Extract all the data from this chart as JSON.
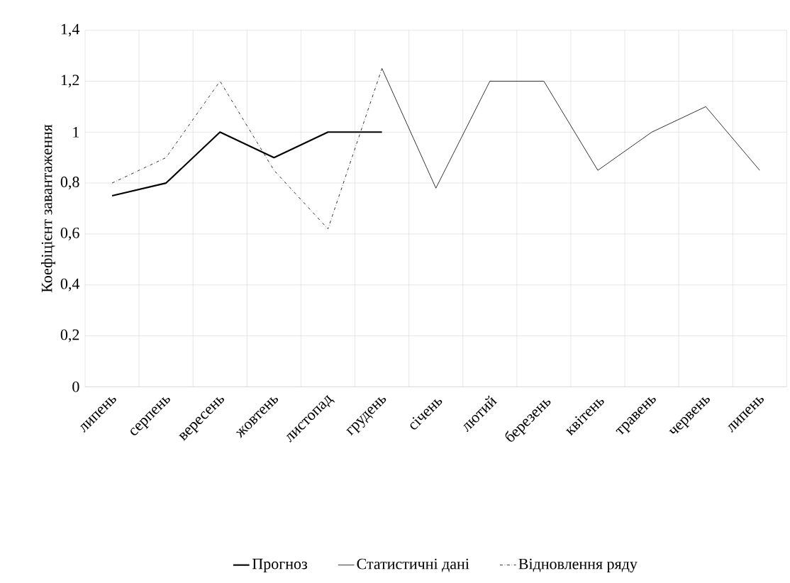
{
  "chart_data": {
    "type": "line",
    "ylabel": "Коефіцієнт завантаження",
    "categories": [
      "липень",
      "серпень",
      "вересень",
      "жовтень",
      "листопад",
      "грудень",
      "січень",
      "лютий",
      "березень",
      "квітень",
      "травень",
      "червень",
      "липень"
    ],
    "series": [
      {
        "name": "Прогноз",
        "color": "#000000",
        "line_style": "solid",
        "values": [
          0.75,
          0.8,
          1.0,
          0.9,
          1.0,
          1.0,
          null,
          null,
          null,
          null,
          null,
          null,
          null
        ]
      },
      {
        "name": "Статистичні дані",
        "color": "#000000",
        "line_style": "solid",
        "values": [
          null,
          null,
          null,
          null,
          null,
          1.25,
          0.78,
          1.2,
          1.2,
          0.85,
          1.0,
          1.1,
          0.85
        ]
      },
      {
        "name": "Відновлення ряду",
        "color": "#000000",
        "line_style": "dashed",
        "values": [
          0.8,
          0.9,
          1.2,
          0.85,
          0.62,
          1.25,
          null,
          null,
          null,
          null,
          null,
          null,
          null
        ]
      }
    ],
    "ylim": [
      0,
      1.4
    ],
    "yticks": [
      0,
      {
        "value": 0.2,
        "label": "0,2"
      },
      {
        "value": 0.4,
        "label": "0,4"
      },
      {
        "value": 0.6,
        "label": "0,6"
      },
      {
        "value": 0.8,
        "label": "0,8"
      },
      {
        "value": 1,
        "label": "1"
      },
      {
        "value": 1.2,
        "label": "1,2"
      },
      {
        "value": 1.4,
        "label": "1,4"
      }
    ],
    "grid": true,
    "legend": "bottom",
    "marker": "none"
  }
}
